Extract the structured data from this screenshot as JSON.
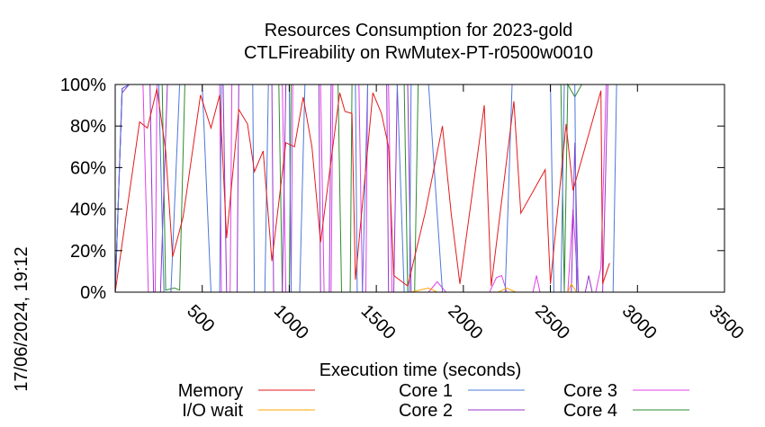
{
  "chart_data": {
    "type": "line",
    "title": "Resources Consumption for 2023-gold",
    "subtitle": "CTLFireability on RwMutex-PT-r0500w0010",
    "xlabel": "Execution time (seconds)",
    "side_label": "17/06/2024, 19:12",
    "xlim": [
      0,
      3500
    ],
    "ylim": [
      0,
      100
    ],
    "x_ticks": [
      500,
      1000,
      1500,
      2000,
      2500,
      3000,
      3500
    ],
    "y_ticks": [
      0,
      20,
      40,
      60,
      80,
      100
    ],
    "y_tick_labels": [
      "0%",
      "20%",
      "40%",
      "60%",
      "80%",
      "100%"
    ],
    "grid": false,
    "legend_position": "bottom",
    "series": [
      {
        "name": "Memory",
        "color": "#e31a1c",
        "points": [
          [
            0,
            0
          ],
          [
            140,
            82
          ],
          [
            185,
            79
          ],
          [
            240,
            98
          ],
          [
            290,
            68
          ],
          [
            330,
            17
          ],
          [
            390,
            36
          ],
          [
            490,
            95
          ],
          [
            550,
            79
          ],
          [
            600,
            95
          ],
          [
            640,
            26
          ],
          [
            710,
            88
          ],
          [
            760,
            81
          ],
          [
            800,
            58
          ],
          [
            850,
            68
          ],
          [
            900,
            15
          ],
          [
            980,
            72
          ],
          [
            1030,
            70
          ],
          [
            1080,
            94
          ],
          [
            1130,
            70
          ],
          [
            1180,
            24
          ],
          [
            1290,
            96
          ],
          [
            1320,
            87
          ],
          [
            1360,
            86
          ],
          [
            1380,
            6
          ],
          [
            1480,
            96
          ],
          [
            1530,
            86
          ],
          [
            1570,
            70
          ],
          [
            1600,
            8
          ],
          [
            1680,
            3
          ],
          [
            1780,
            38
          ],
          [
            1880,
            80
          ],
          [
            1930,
            38
          ],
          [
            1980,
            4
          ],
          [
            2120,
            90
          ],
          [
            2160,
            3
          ],
          [
            2290,
            92
          ],
          [
            2330,
            38
          ],
          [
            2470,
            59
          ],
          [
            2500,
            4
          ],
          [
            2590,
            81
          ],
          [
            2630,
            49
          ],
          [
            2790,
            97
          ],
          [
            2800,
            4
          ],
          [
            2840,
            14
          ]
        ]
      },
      {
        "name": "I/O wait",
        "color": "#ffa500",
        "points": [
          [
            0,
            0
          ],
          [
            1700,
            0
          ],
          [
            1800,
            2
          ],
          [
            1850,
            0
          ],
          [
            2200,
            0
          ],
          [
            2250,
            2
          ],
          [
            2300,
            0
          ],
          [
            2500,
            0
          ],
          [
            2600,
            0
          ],
          [
            2620,
            4
          ],
          [
            2650,
            0
          ],
          [
            3500,
            0
          ]
        ]
      },
      {
        "name": "Core 1",
        "color": "#4c78d8",
        "points": [
          [
            0,
            0
          ],
          [
            40,
            98
          ],
          [
            80,
            100
          ],
          [
            250,
            100
          ],
          [
            280,
            0
          ],
          [
            320,
            0
          ],
          [
            370,
            100
          ],
          [
            500,
            100
          ],
          [
            550,
            0
          ],
          [
            600,
            0
          ],
          [
            610,
            100
          ],
          [
            790,
            100
          ],
          [
            800,
            0
          ],
          [
            860,
            0
          ],
          [
            880,
            100
          ],
          [
            1000,
            100
          ],
          [
            1010,
            0
          ],
          [
            1060,
            0
          ],
          [
            1090,
            100
          ],
          [
            1380,
            100
          ],
          [
            1390,
            0
          ],
          [
            1420,
            0
          ],
          [
            1450,
            100
          ],
          [
            1620,
            100
          ],
          [
            1660,
            0
          ],
          [
            1690,
            0
          ],
          [
            1700,
            100
          ],
          [
            1800,
            100
          ],
          [
            1880,
            0
          ],
          [
            2240,
            0
          ],
          [
            2280,
            100
          ],
          [
            2500,
            100
          ],
          [
            2520,
            0
          ],
          [
            2560,
            0
          ],
          [
            2580,
            100
          ],
          [
            2640,
            100
          ],
          [
            2650,
            0
          ],
          [
            2860,
            0
          ],
          [
            2880,
            100
          ],
          [
            3500,
            100
          ]
        ]
      },
      {
        "name": "Core 2",
        "color": "#9933cc",
        "points": [
          [
            0,
            0
          ],
          [
            40,
            96
          ],
          [
            80,
            100
          ],
          [
            150,
            100
          ],
          [
            200,
            100
          ],
          [
            220,
            0
          ],
          [
            260,
            0
          ],
          [
            300,
            100
          ],
          [
            620,
            100
          ],
          [
            640,
            0
          ],
          [
            700,
            0
          ],
          [
            710,
            100
          ],
          [
            900,
            100
          ],
          [
            910,
            0
          ],
          [
            960,
            0
          ],
          [
            980,
            100
          ],
          [
            1170,
            100
          ],
          [
            1180,
            0
          ],
          [
            1230,
            0
          ],
          [
            1240,
            100
          ],
          [
            1560,
            100
          ],
          [
            1570,
            0
          ],
          [
            1600,
            0
          ],
          [
            1620,
            100
          ],
          [
            1680,
            100
          ],
          [
            1700,
            0
          ],
          [
            2620,
            0
          ],
          [
            2640,
            72
          ],
          [
            2660,
            0
          ],
          [
            2700,
            0
          ],
          [
            2720,
            8
          ],
          [
            2740,
            0
          ],
          [
            2800,
            0
          ],
          [
            2830,
            100
          ],
          [
            3500,
            100
          ]
        ]
      },
      {
        "name": "Core 3",
        "color": "#e040e8",
        "points": [
          [
            0,
            0
          ],
          [
            40,
            98
          ],
          [
            80,
            100
          ],
          [
            160,
            100
          ],
          [
            190,
            0
          ],
          [
            230,
            0
          ],
          [
            240,
            100
          ],
          [
            600,
            100
          ],
          [
            610,
            0
          ],
          [
            660,
            0
          ],
          [
            670,
            100
          ],
          [
            960,
            100
          ],
          [
            980,
            0
          ],
          [
            1010,
            0
          ],
          [
            1020,
            100
          ],
          [
            1180,
            100
          ],
          [
            1200,
            0
          ],
          [
            1240,
            0
          ],
          [
            1250,
            100
          ],
          [
            1400,
            100
          ],
          [
            1420,
            0
          ],
          [
            1440,
            0
          ],
          [
            1450,
            100
          ],
          [
            1570,
            100
          ],
          [
            1590,
            0
          ],
          [
            1800,
            0
          ],
          [
            1850,
            5
          ],
          [
            1900,
            0
          ],
          [
            2150,
            0
          ],
          [
            2190,
            7
          ],
          [
            2220,
            8
          ],
          [
            2250,
            0
          ],
          [
            2400,
            0
          ],
          [
            2420,
            8
          ],
          [
            2440,
            0
          ],
          [
            2600,
            0
          ],
          [
            2630,
            40
          ],
          [
            2660,
            0
          ],
          [
            2760,
            0
          ],
          [
            2790,
            12
          ],
          [
            2820,
            100
          ],
          [
            3500,
            100
          ]
        ]
      },
      {
        "name": "Core 4",
        "color": "#2e8b2e",
        "points": [
          [
            0,
            0
          ],
          [
            40,
            98
          ],
          [
            80,
            100
          ],
          [
            270,
            100
          ],
          [
            290,
            1
          ],
          [
            340,
            2
          ],
          [
            370,
            1
          ],
          [
            400,
            100
          ],
          [
            940,
            100
          ],
          [
            960,
            0
          ],
          [
            1000,
            0
          ],
          [
            1010,
            100
          ],
          [
            1280,
            100
          ],
          [
            1300,
            0
          ],
          [
            1350,
            0
          ],
          [
            1360,
            100
          ],
          [
            1660,
            100
          ],
          [
            1680,
            0
          ],
          [
            1720,
            0
          ],
          [
            1740,
            100
          ],
          [
            2560,
            100
          ],
          [
            2580,
            0
          ],
          [
            2600,
            100
          ],
          [
            2640,
            94
          ],
          [
            2680,
            100
          ],
          [
            3500,
            100
          ]
        ]
      }
    ]
  }
}
